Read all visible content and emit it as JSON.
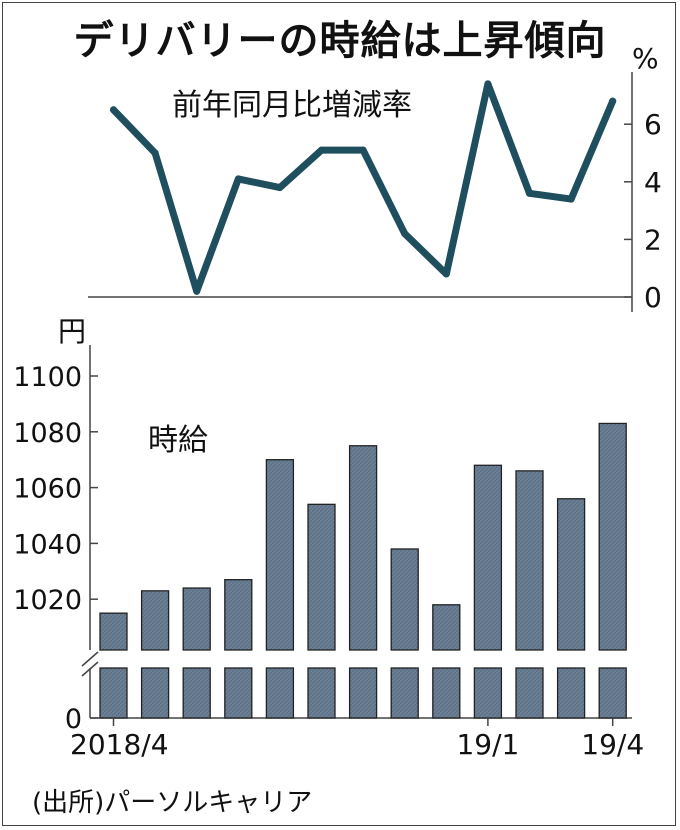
{
  "title": "デリバリーの時給は上昇傾向",
  "source": "(出所)パーソルキャリア",
  "chart_data": [
    {
      "type": "line",
      "title": "前年同月比増減率",
      "unit": "%",
      "y_ticks": [
        "6",
        "4",
        "2",
        "0"
      ],
      "ylim": [
        0,
        8
      ],
      "values": [
        6.5,
        5.0,
        0.2,
        4.1,
        3.8,
        5.1,
        5.1,
        2.2,
        0.8,
        7.4,
        3.6,
        3.4,
        6.8
      ],
      "color": "#1f4e5f",
      "grid": false
    },
    {
      "type": "bar",
      "title": "時給",
      "unit": "円",
      "x_tick_labels": [
        "2018/4",
        "19/1",
        "19/4"
      ],
      "x_tick_categories": [
        "2018/4",
        "19/1",
        "19/4"
      ],
      "categories": [
        "2018/4",
        "2018/5",
        "2018/6",
        "2018/7",
        "2018/8",
        "2018/9",
        "2018/10",
        "2018/11",
        "2018/12",
        "19/1",
        "19/2",
        "19/3",
        "19/4"
      ],
      "values": [
        1015,
        1023,
        1024,
        1027,
        1070,
        1054,
        1075,
        1038,
        1018,
        1068,
        1066,
        1056,
        1083
      ],
      "y_ticks": [
        "1100",
        "1080",
        "1060",
        "1040",
        "1020",
        "0"
      ],
      "ylim": [
        1000,
        1100
      ],
      "axis_break": true,
      "color": "#6b7f95",
      "grid": false
    }
  ]
}
